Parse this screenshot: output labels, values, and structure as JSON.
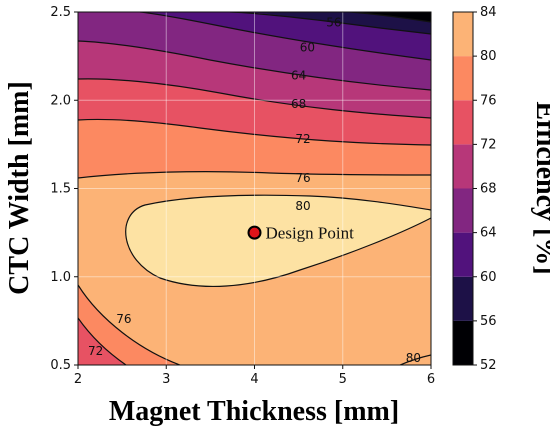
{
  "chart_data": {
    "type": "heatmap",
    "subtype": "filled-contour",
    "xlabel": "Magnet Thickness [mm]",
    "ylabel": "CTC Width [mm]",
    "colorbar_label": "Efficiency [%]",
    "xlim": [
      2,
      6
    ],
    "ylim": [
      0.5,
      2.5
    ],
    "x_ticks": [
      "2",
      "3",
      "4",
      "5",
      "6"
    ],
    "y_ticks": [
      "0.5",
      "1.0",
      "1.5",
      "2.0",
      "2.5"
    ],
    "colorbar_ticks": [
      "52",
      "56",
      "60",
      "64",
      "68",
      "72",
      "76",
      "80",
      "84"
    ],
    "levels": [
      52,
      56,
      60,
      64,
      68,
      72,
      76,
      80,
      84
    ],
    "level_colors": [
      "#000004",
      "#1d1147",
      "#51127c",
      "#822681",
      "#b73779",
      "#e75263",
      "#fc8961",
      "#fcb376",
      "#fde2a3"
    ],
    "grid": true,
    "contour_labels": [
      {
        "text": "56",
        "x": 4.9,
        "y": 2.44
      },
      {
        "text": "60",
        "x": 4.6,
        "y": 2.3
      },
      {
        "text": "64",
        "x": 4.5,
        "y": 2.14
      },
      {
        "text": "68",
        "x": 4.5,
        "y": 1.98
      },
      {
        "text": "72",
        "x": 4.55,
        "y": 1.78
      },
      {
        "text": "76",
        "x": 4.55,
        "y": 1.56
      },
      {
        "text": "80",
        "x": 4.55,
        "y": 1.4
      },
      {
        "text": "76",
        "x": 2.52,
        "y": 0.76
      },
      {
        "text": "72",
        "x": 2.2,
        "y": 0.58
      },
      {
        "text": "80",
        "x": 5.8,
        "y": 0.54
      }
    ],
    "annotations": [
      {
        "text": "Design Point",
        "x": 4.0,
        "y": 1.25
      }
    ],
    "design_point": {
      "x": 4.0,
      "y": 1.25,
      "label": "Design Point"
    }
  }
}
